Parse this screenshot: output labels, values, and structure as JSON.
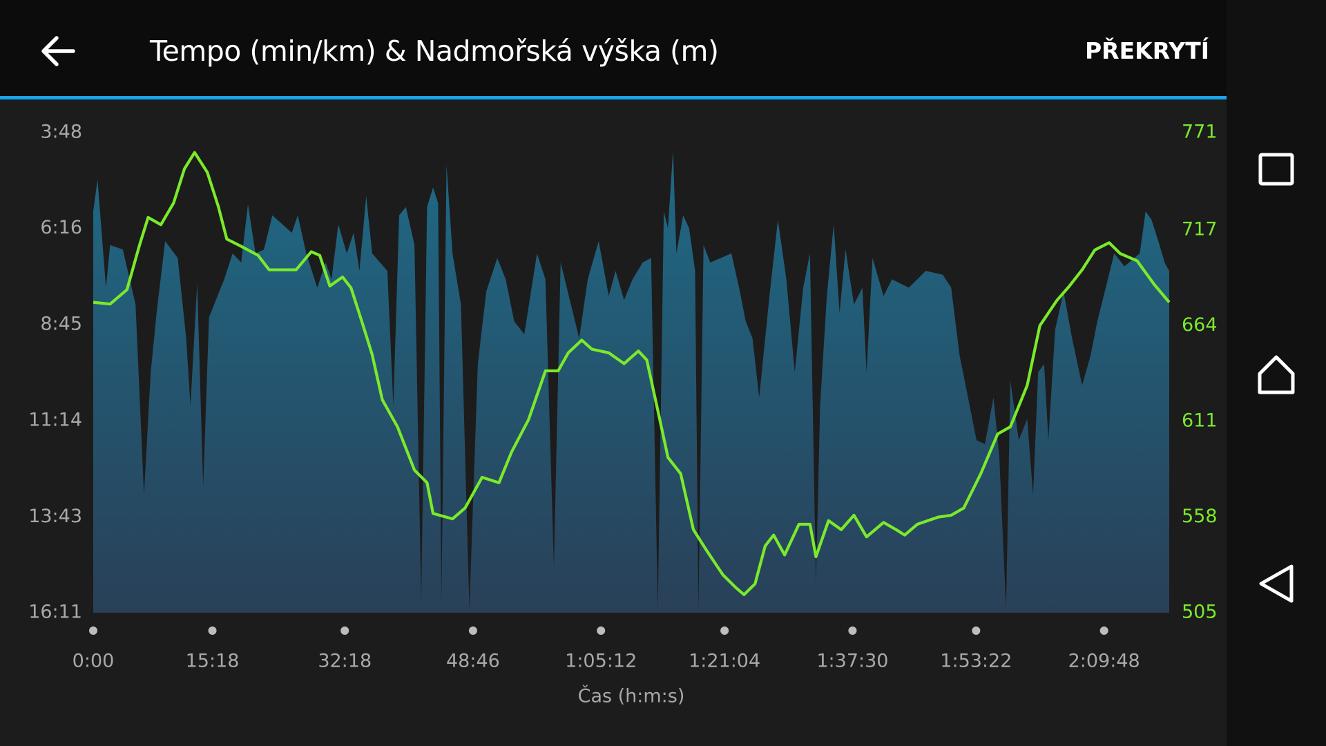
{
  "app_bar": {
    "title": "Tempo (min/km) & Nadmořská výška (m)",
    "action": "PŘEKRYTÍ"
  },
  "chart_data": {
    "type": "area",
    "x_label": "Čas (h:m:s)",
    "xlim": [
      0,
      8290
    ],
    "xticks": [
      {
        "value": 0,
        "label": "0:00"
      },
      {
        "value": 918,
        "label": "15:18"
      },
      {
        "value": 1938,
        "label": "32:18"
      },
      {
        "value": 2926,
        "label": "48:46"
      },
      {
        "value": 3912,
        "label": "1:05:12"
      },
      {
        "value": 4864,
        "label": "1:21:04"
      },
      {
        "value": 5850,
        "label": "1:37:30"
      },
      {
        "value": 6802,
        "label": "1:53:22"
      },
      {
        "value": 7788,
        "label": "2:09:48"
      }
    ],
    "ylim": [
      971,
      228
    ],
    "yticks": [
      {
        "value": 228,
        "label": "3:48"
      },
      {
        "value": 376,
        "label": "6:16"
      },
      {
        "value": 525,
        "label": "8:45"
      },
      {
        "value": 674,
        "label": "11:14"
      },
      {
        "value": 823,
        "label": "13:43"
      },
      {
        "value": 971,
        "label": "16:11"
      }
    ],
    "y2lim": [
      505,
      771
    ],
    "y2ticks": [
      771,
      717,
      664,
      611,
      558,
      505
    ],
    "y2_color": "#7bea2a",
    "series": [
      {
        "name": "Tempo (min/km)",
        "type": "area",
        "color": "#1f6a86",
        "x": [
          0,
          33,
          98,
          130,
          228,
          326,
          391,
          443,
          488,
          554,
          651,
          716,
          749,
          801,
          847,
          892,
          1009,
          1074,
          1140,
          1192,
          1250,
          1315,
          1380,
          1530,
          1576,
          1641,
          1726,
          1791,
          1836,
          1888,
          1954,
          2006,
          2051,
          2103,
          2149,
          2266,
          2312,
          2357,
          2409,
          2475,
          2527,
          2572,
          2618,
          2657,
          2683,
          2722,
          2768,
          2833,
          2898,
          2963,
          3028,
          3113,
          3178,
          3243,
          3321,
          3419,
          3484,
          3549,
          3601,
          3744,
          3810,
          3894,
          3972,
          4024,
          4090,
          4155,
          4233,
          4298,
          4350,
          4396,
          4428,
          4467,
          4493,
          4545,
          4591,
          4637,
          4663,
          4702,
          4754,
          4917,
          4982,
          5027,
          5079,
          5131,
          5210,
          5275,
          5340,
          5405,
          5470,
          5522,
          5568,
          5600,
          5652,
          5705,
          5750,
          5796,
          5861,
          5926,
          5958,
          6004,
          6089,
          6154,
          6284,
          6414,
          6545,
          6610,
          6675,
          6740,
          6805,
          6870,
          6936,
          6981,
          7033,
          7066,
          7131,
          7196,
          7241,
          7280,
          7326,
          7359,
          7411,
          7476,
          7541,
          7619,
          7684,
          7736,
          7801,
          7866,
          7945,
          8063,
          8108,
          8154,
          8206,
          8258,
          8290
        ],
        "values": [
          350,
          301,
          468,
          402,
          409,
          494,
          789,
          599,
          507,
          396,
          422,
          546,
          651,
          461,
          776,
          514,
          455,
          415,
          429,
          339,
          415,
          409,
          356,
          383,
          356,
          415,
          468,
          429,
          455,
          370,
          415,
          383,
          442,
          326,
          415,
          442,
          651,
          356,
          343,
          402,
          953,
          343,
          313,
          337,
          953,
          278,
          415,
          494,
          966,
          586,
          474,
          422,
          455,
          520,
          540,
          415,
          455,
          900,
          429,
          546,
          455,
          396,
          481,
          442,
          487,
          455,
          429,
          422,
          966,
          350,
          376,
          256,
          415,
          356,
          376,
          442,
          966,
          402,
          429,
          415,
          474,
          520,
          546,
          638,
          481,
          363,
          455,
          599,
          468,
          415,
          926,
          651,
          481,
          370,
          507,
          409,
          494,
          468,
          599,
          422,
          481,
          455,
          468,
          442,
          448,
          468,
          573,
          638,
          704,
          710,
          638,
          730,
          966,
          612,
          704,
          671,
          789,
          599,
          586,
          704,
          533,
          474,
          546,
          619,
          573,
          520,
          468,
          415,
          435,
          415,
          350,
          363,
          396,
          431,
          442
        ]
      },
      {
        "name": "Nadmořská výška (m)",
        "type": "line",
        "axis": "y2",
        "color": "#7bea2a",
        "x": [
          0,
          130,
          260,
          358,
          423,
          521,
          619,
          703,
          781,
          879,
          964,
          1029,
          1140,
          1270,
          1355,
          1563,
          1680,
          1745,
          1823,
          1921,
          1986,
          2071,
          2149,
          2227,
          2344,
          2475,
          2572,
          2618,
          2768,
          2865,
          2996,
          3126,
          3223,
          3354,
          3484,
          3582,
          3660,
          3764,
          3842,
          3972,
          4090,
          4200,
          4265,
          4350,
          4428,
          4526,
          4624,
          4721,
          4851,
          4949,
          5014,
          5099,
          5177,
          5242,
          5327,
          5437,
          5522,
          5568,
          5665,
          5763,
          5861,
          5958,
          6089,
          6186,
          6252,
          6349,
          6512,
          6610,
          6707,
          6838,
          6968,
          7066,
          7196,
          7293,
          7424,
          7521,
          7619,
          7717,
          7827,
          7912,
          8042,
          8173,
          8290
        ],
        "values": [
          677,
          676,
          684,
          709,
          724,
          720,
          732,
          751,
          760,
          749,
          730,
          712,
          708,
          703,
          695,
          695,
          705,
          703,
          686,
          691,
          685,
          666,
          648,
          623,
          608,
          584,
          577,
          560,
          557,
          563,
          580,
          577,
          594,
          612,
          639,
          639,
          649,
          656,
          651,
          649,
          643,
          650,
          645,
          617,
          591,
          582,
          551,
          540,
          526,
          519,
          515,
          521,
          542,
          548,
          537,
          554,
          554,
          536,
          556,
          551,
          559,
          547,
          555,
          551,
          548,
          554,
          558,
          559,
          563,
          582,
          604,
          608,
          631,
          664,
          678,
          686,
          695,
          706,
          710,
          704,
          700,
          687,
          677
        ]
      }
    ]
  }
}
